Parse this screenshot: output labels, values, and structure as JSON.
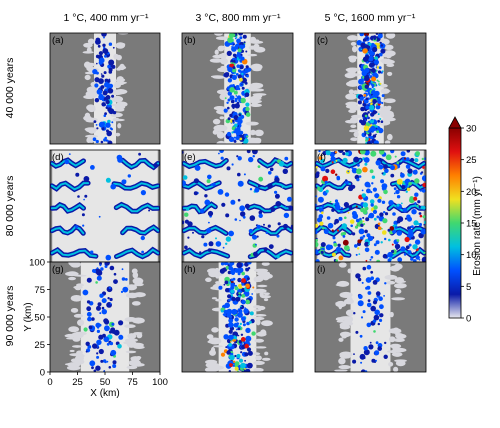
{
  "chart_data": {
    "type": "heatmap",
    "columns": [
      {
        "label": "1 °C, 400 mm yr⁻¹"
      },
      {
        "label": "3 °C, 800 mm yr⁻¹"
      },
      {
        "label": "5 °C, 1600 mm yr⁻¹"
      }
    ],
    "rows": [
      {
        "label": "40 000 years"
      },
      {
        "label": "80 000 years"
      },
      {
        "label": "90 000 years"
      }
    ],
    "panels": [
      {
        "id": "(a)",
        "row": 0,
        "col": 0,
        "active_halfwidth_km": 10,
        "shoulder_km": 4,
        "channels": false,
        "intensity": 0.12,
        "hot_fraction": 0.0
      },
      {
        "id": "(b)",
        "row": 0,
        "col": 1,
        "active_halfwidth_km": 12,
        "shoulder_km": 5,
        "channels": false,
        "intensity": 0.28,
        "hot_fraction": 0.03
      },
      {
        "id": "(c)",
        "row": 0,
        "col": 2,
        "active_halfwidth_km": 12,
        "shoulder_km": 4,
        "channels": false,
        "intensity": 0.4,
        "hot_fraction": 0.08
      },
      {
        "id": "(d)",
        "row": 1,
        "col": 0,
        "active_halfwidth_km": 48,
        "shoulder_km": 0,
        "channels": true,
        "intensity": 0.1,
        "hot_fraction": 0.0
      },
      {
        "id": "(e)",
        "row": 1,
        "col": 1,
        "active_halfwidth_km": 48,
        "shoulder_km": 0,
        "channels": true,
        "intensity": 0.25,
        "hot_fraction": 0.02
      },
      {
        "id": "(f)",
        "row": 1,
        "col": 2,
        "active_halfwidth_km": 48,
        "shoulder_km": 0,
        "channels": true,
        "intensity": 0.55,
        "hot_fraction": 0.15
      },
      {
        "id": "(g)",
        "row": 2,
        "col": 0,
        "active_halfwidth_km": 22,
        "shoulder_km": 6,
        "channels": false,
        "intensity": 0.1,
        "hot_fraction": 0.01
      },
      {
        "id": "(h)",
        "row": 2,
        "col": 1,
        "active_halfwidth_km": 17,
        "shoulder_km": 6,
        "channels": false,
        "intensity": 0.32,
        "hot_fraction": 0.06
      },
      {
        "id": "(i)",
        "row": 2,
        "col": 2,
        "active_halfwidth_km": 18,
        "shoulder_km": 6,
        "channels": false,
        "intensity": 0.07,
        "hot_fraction": 0.0
      }
    ],
    "x_axis": {
      "label": "X (km)",
      "ticks": [
        "0",
        "25",
        "50",
        "75",
        "100"
      ],
      "range": [
        0,
        100
      ]
    },
    "y_axis": {
      "label": "Y (km)",
      "ticks": [
        "0",
        "25",
        "50",
        "75",
        "100"
      ],
      "range": [
        0,
        100
      ]
    },
    "colorbar": {
      "label": "Erosion rate (mm yr⁻¹)",
      "ticks": [
        "0",
        "5",
        "10",
        "15",
        "20",
        "25",
        "30"
      ],
      "range": [
        0,
        30
      ],
      "extend": "max",
      "colors": [
        "#e8e8ee",
        "#0a1aa8",
        "#0050ff",
        "#00c0e0",
        "#40d870",
        "#f0e020",
        "#ff8000",
        "#e01010",
        "#8a0000"
      ]
    },
    "background_color": "#7a7a7a",
    "inactive_color": "#e6e6e6"
  }
}
